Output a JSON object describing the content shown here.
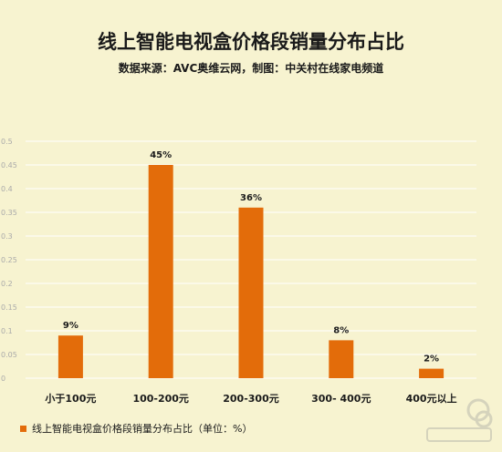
{
  "title": "线上智能电视盒价格段销量分布占比",
  "subtitle": "数据来源：AVC奥维云网，制图：中关村在线家电频道",
  "legend_label": "线上智能电视盒价格段销量分布占比（单位：%）",
  "colors": {
    "bar": "#e36c0a",
    "background": "#f7f3d0",
    "grid": "#ffffff"
  },
  "chart_data": {
    "type": "bar",
    "categories": [
      "小于100元",
      "100-200元",
      "200-300元",
      "300- 400元",
      "400元以上"
    ],
    "values": [
      0.09,
      0.45,
      0.36,
      0.08,
      0.02
    ],
    "data_labels": [
      "9%",
      "45%",
      "36%",
      "8%",
      "2%"
    ],
    "yticks": [
      "0",
      "0.05",
      "0.1",
      "0.15",
      "0.2",
      "0.25",
      "0.3",
      "0.35",
      "0.4",
      "0.45",
      "0.5"
    ],
    "ylim": [
      0,
      0.5
    ],
    "grid": true,
    "legend_position": "bottom-left",
    "series": [
      {
        "name": "线上智能电视盒价格段销量分布占比（单位：%）",
        "values": [
          0.09,
          0.45,
          0.36,
          0.08,
          0.02
        ]
      }
    ]
  }
}
